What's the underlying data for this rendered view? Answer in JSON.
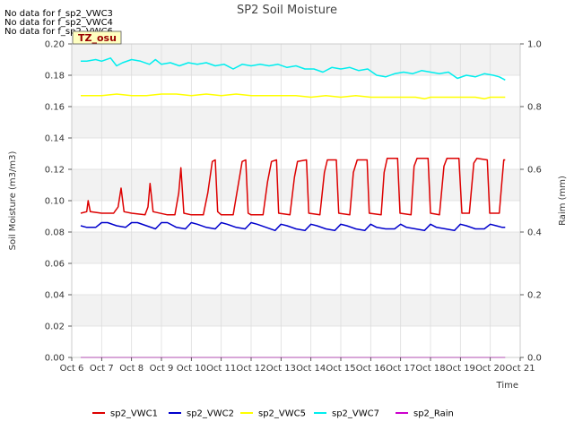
{
  "notes": [
    "No data for f_sp2_VWC3",
    "No data for f_sp2_VWC4",
    "No data for f_sp2_VWC6"
  ],
  "chart_data": {
    "type": "line",
    "title": "SP2 Soil Moisture",
    "annotation": "TZ_osu",
    "xlabel": "Time",
    "ylabel": "Soil Moisture (m3/m3)",
    "y2label": "Raim (mm)",
    "xlim": [
      6,
      21
    ],
    "ylim": [
      0,
      0.2
    ],
    "y2lim": [
      0,
      1.0
    ],
    "x_ticks": [
      {
        "v": 6,
        "label": "Oct 6"
      },
      {
        "v": 7,
        "label": "Oct 7"
      },
      {
        "v": 8,
        "label": "Oct 8"
      },
      {
        "v": 9,
        "label": "Oct 9"
      },
      {
        "v": 10,
        "label": "Oct 10"
      },
      {
        "v": 11,
        "label": "Oct 11"
      },
      {
        "v": 12,
        "label": "Oct 12"
      },
      {
        "v": 13,
        "label": "Oct 13"
      },
      {
        "v": 14,
        "label": "Oct 14"
      },
      {
        "v": 15,
        "label": "Oct 15"
      },
      {
        "v": 16,
        "label": "Oct 16"
      },
      {
        "v": 17,
        "label": "Oct 17"
      },
      {
        "v": 18,
        "label": "Oct 18"
      },
      {
        "v": 19,
        "label": "Oct 19"
      },
      {
        "v": 20,
        "label": "Oct 20"
      },
      {
        "v": 21,
        "label": "Oct 21"
      }
    ],
    "y_ticks": [
      {
        "v": 0.0,
        "label": "0.00"
      },
      {
        "v": 0.02,
        "label": "0.02"
      },
      {
        "v": 0.04,
        "label": "0.04"
      },
      {
        "v": 0.06,
        "label": "0.06"
      },
      {
        "v": 0.08,
        "label": "0.08"
      },
      {
        "v": 0.1,
        "label": "0.10"
      },
      {
        "v": 0.12,
        "label": "0.12"
      },
      {
        "v": 0.14,
        "label": "0.14"
      },
      {
        "v": 0.16,
        "label": "0.16"
      },
      {
        "v": 0.18,
        "label": "0.18"
      },
      {
        "v": 0.2,
        "label": "0.20"
      }
    ],
    "y2_ticks": [
      {
        "v": 0.0,
        "label": "0.0"
      },
      {
        "v": 0.2,
        "label": "0.2"
      },
      {
        "v": 0.4,
        "label": "0.4"
      },
      {
        "v": 0.6,
        "label": "0.6"
      },
      {
        "v": 0.8,
        "label": "0.8"
      },
      {
        "v": 1.0,
        "label": "1.0"
      }
    ],
    "grid": true,
    "legend_position": "bottom",
    "series": [
      {
        "name": "sp2_VWC1",
        "color": "#dd0000",
        "axis": "left",
        "points": [
          [
            6.3,
            0.092
          ],
          [
            6.5,
            0.093
          ],
          [
            6.55,
            0.1
          ],
          [
            6.62,
            0.093
          ],
          [
            7.0,
            0.092
          ],
          [
            7.4,
            0.092
          ],
          [
            7.55,
            0.096
          ],
          [
            7.65,
            0.108
          ],
          [
            7.75,
            0.093
          ],
          [
            8.0,
            0.092
          ],
          [
            8.45,
            0.091
          ],
          [
            8.55,
            0.096
          ],
          [
            8.62,
            0.111
          ],
          [
            8.72,
            0.093
          ],
          [
            9.2,
            0.091
          ],
          [
            9.45,
            0.091
          ],
          [
            9.58,
            0.105
          ],
          [
            9.65,
            0.121
          ],
          [
            9.75,
            0.092
          ],
          [
            10.0,
            0.091
          ],
          [
            10.4,
            0.091
          ],
          [
            10.55,
            0.105
          ],
          [
            10.7,
            0.125
          ],
          [
            10.8,
            0.126
          ],
          [
            10.88,
            0.093
          ],
          [
            11.0,
            0.091
          ],
          [
            11.4,
            0.091
          ],
          [
            11.55,
            0.108
          ],
          [
            11.7,
            0.125
          ],
          [
            11.82,
            0.126
          ],
          [
            11.9,
            0.092
          ],
          [
            12.0,
            0.091
          ],
          [
            12.4,
            0.091
          ],
          [
            12.55,
            0.112
          ],
          [
            12.68,
            0.125
          ],
          [
            12.85,
            0.126
          ],
          [
            12.92,
            0.092
          ],
          [
            13.3,
            0.091
          ],
          [
            13.45,
            0.115
          ],
          [
            13.55,
            0.125
          ],
          [
            13.85,
            0.126
          ],
          [
            13.93,
            0.092
          ],
          [
            14.3,
            0.091
          ],
          [
            14.45,
            0.118
          ],
          [
            14.55,
            0.126
          ],
          [
            14.85,
            0.126
          ],
          [
            14.93,
            0.092
          ],
          [
            15.3,
            0.091
          ],
          [
            15.42,
            0.118
          ],
          [
            15.55,
            0.126
          ],
          [
            15.88,
            0.126
          ],
          [
            15.95,
            0.092
          ],
          [
            16.35,
            0.091
          ],
          [
            16.45,
            0.118
          ],
          [
            16.55,
            0.127
          ],
          [
            16.9,
            0.127
          ],
          [
            16.98,
            0.092
          ],
          [
            17.35,
            0.091
          ],
          [
            17.45,
            0.122
          ],
          [
            17.55,
            0.127
          ],
          [
            17.92,
            0.127
          ],
          [
            18.0,
            0.092
          ],
          [
            18.3,
            0.091
          ],
          [
            18.45,
            0.122
          ],
          [
            18.55,
            0.127
          ],
          [
            18.95,
            0.127
          ],
          [
            19.05,
            0.092
          ],
          [
            19.3,
            0.092
          ],
          [
            19.45,
            0.124
          ],
          [
            19.55,
            0.127
          ],
          [
            19.9,
            0.126
          ],
          [
            19.98,
            0.092
          ],
          [
            20.3,
            0.092
          ],
          [
            20.38,
            0.11
          ],
          [
            20.45,
            0.126
          ],
          [
            20.5,
            0.126
          ]
        ]
      },
      {
        "name": "sp2_VWC2",
        "color": "#0000cc",
        "axis": "left",
        "points": [
          [
            6.3,
            0.084
          ],
          [
            6.5,
            0.083
          ],
          [
            6.8,
            0.083
          ],
          [
            7.0,
            0.086
          ],
          [
            7.2,
            0.086
          ],
          [
            7.5,
            0.084
          ],
          [
            7.8,
            0.083
          ],
          [
            8.0,
            0.086
          ],
          [
            8.2,
            0.086
          ],
          [
            8.5,
            0.084
          ],
          [
            8.8,
            0.082
          ],
          [
            9.0,
            0.086
          ],
          [
            9.2,
            0.086
          ],
          [
            9.5,
            0.083
          ],
          [
            9.8,
            0.082
          ],
          [
            10.0,
            0.086
          ],
          [
            10.2,
            0.085
          ],
          [
            10.5,
            0.083
          ],
          [
            10.8,
            0.082
          ],
          [
            11.0,
            0.086
          ],
          [
            11.2,
            0.085
          ],
          [
            11.5,
            0.083
          ],
          [
            11.8,
            0.082
          ],
          [
            12.0,
            0.086
          ],
          [
            12.2,
            0.085
          ],
          [
            12.5,
            0.083
          ],
          [
            12.8,
            0.081
          ],
          [
            13.0,
            0.085
          ],
          [
            13.2,
            0.084
          ],
          [
            13.5,
            0.082
          ],
          [
            13.8,
            0.081
          ],
          [
            14.0,
            0.085
          ],
          [
            14.2,
            0.084
          ],
          [
            14.5,
            0.082
          ],
          [
            14.8,
            0.081
          ],
          [
            15.0,
            0.085
          ],
          [
            15.2,
            0.084
          ],
          [
            15.5,
            0.082
          ],
          [
            15.8,
            0.081
          ],
          [
            16.0,
            0.085
          ],
          [
            16.2,
            0.083
          ],
          [
            16.5,
            0.082
          ],
          [
            16.8,
            0.082
          ],
          [
            17.0,
            0.085
          ],
          [
            17.2,
            0.083
          ],
          [
            17.5,
            0.082
          ],
          [
            17.8,
            0.081
          ],
          [
            18.0,
            0.085
          ],
          [
            18.2,
            0.083
          ],
          [
            18.5,
            0.082
          ],
          [
            18.8,
            0.081
          ],
          [
            19.0,
            0.085
          ],
          [
            19.2,
            0.084
          ],
          [
            19.5,
            0.082
          ],
          [
            19.8,
            0.082
          ],
          [
            20.0,
            0.085
          ],
          [
            20.2,
            0.084
          ],
          [
            20.4,
            0.083
          ],
          [
            20.5,
            0.083
          ]
        ]
      },
      {
        "name": "sp2_VWC5",
        "color": "#ffff00",
        "axis": "left",
        "points": [
          [
            6.3,
            0.167
          ],
          [
            6.6,
            0.167
          ],
          [
            7.0,
            0.167
          ],
          [
            7.5,
            0.168
          ],
          [
            8.0,
            0.167
          ],
          [
            8.5,
            0.167
          ],
          [
            9.0,
            0.168
          ],
          [
            9.5,
            0.168
          ],
          [
            10.0,
            0.167
          ],
          [
            10.5,
            0.168
          ],
          [
            11.0,
            0.167
          ],
          [
            11.5,
            0.168
          ],
          [
            12.0,
            0.167
          ],
          [
            12.5,
            0.167
          ],
          [
            13.0,
            0.167
          ],
          [
            13.5,
            0.167
          ],
          [
            14.0,
            0.166
          ],
          [
            14.5,
            0.167
          ],
          [
            15.0,
            0.166
          ],
          [
            15.5,
            0.167
          ],
          [
            16.0,
            0.166
          ],
          [
            16.5,
            0.166
          ],
          [
            17.0,
            0.166
          ],
          [
            17.5,
            0.166
          ],
          [
            17.8,
            0.165
          ],
          [
            18.0,
            0.166
          ],
          [
            18.5,
            0.166
          ],
          [
            19.0,
            0.166
          ],
          [
            19.5,
            0.166
          ],
          [
            19.8,
            0.165
          ],
          [
            20.0,
            0.166
          ],
          [
            20.3,
            0.166
          ],
          [
            20.5,
            0.166
          ]
        ]
      },
      {
        "name": "sp2_VWC7",
        "color": "#00eeee",
        "axis": "left",
        "points": [
          [
            6.3,
            0.189
          ],
          [
            6.5,
            0.189
          ],
          [
            6.8,
            0.19
          ],
          [
            7.0,
            0.189
          ],
          [
            7.3,
            0.191
          ],
          [
            7.5,
            0.186
          ],
          [
            7.7,
            0.188
          ],
          [
            8.0,
            0.19
          ],
          [
            8.3,
            0.189
          ],
          [
            8.6,
            0.187
          ],
          [
            8.8,
            0.19
          ],
          [
            9.0,
            0.187
          ],
          [
            9.3,
            0.188
          ],
          [
            9.6,
            0.186
          ],
          [
            9.9,
            0.188
          ],
          [
            10.2,
            0.187
          ],
          [
            10.5,
            0.188
          ],
          [
            10.8,
            0.186
          ],
          [
            11.1,
            0.187
          ],
          [
            11.4,
            0.184
          ],
          [
            11.7,
            0.187
          ],
          [
            12.0,
            0.186
          ],
          [
            12.3,
            0.187
          ],
          [
            12.6,
            0.186
          ],
          [
            12.9,
            0.187
          ],
          [
            13.2,
            0.185
          ],
          [
            13.5,
            0.186
          ],
          [
            13.8,
            0.184
          ],
          [
            14.1,
            0.184
          ],
          [
            14.4,
            0.182
          ],
          [
            14.7,
            0.185
          ],
          [
            15.0,
            0.184
          ],
          [
            15.3,
            0.185
          ],
          [
            15.6,
            0.183
          ],
          [
            15.9,
            0.184
          ],
          [
            16.2,
            0.18
          ],
          [
            16.5,
            0.179
          ],
          [
            16.8,
            0.181
          ],
          [
            17.1,
            0.182
          ],
          [
            17.4,
            0.181
          ],
          [
            17.7,
            0.183
          ],
          [
            18.0,
            0.182
          ],
          [
            18.3,
            0.181
          ],
          [
            18.6,
            0.182
          ],
          [
            18.9,
            0.178
          ],
          [
            19.2,
            0.18
          ],
          [
            19.5,
            0.179
          ],
          [
            19.8,
            0.181
          ],
          [
            20.1,
            0.18
          ],
          [
            20.3,
            0.179
          ],
          [
            20.5,
            0.177
          ]
        ]
      },
      {
        "name": "sp2_Rain",
        "color": "#cc00cc",
        "axis": "right",
        "points": [
          [
            6.3,
            0.0
          ],
          [
            20.5,
            0.0
          ]
        ]
      }
    ]
  }
}
